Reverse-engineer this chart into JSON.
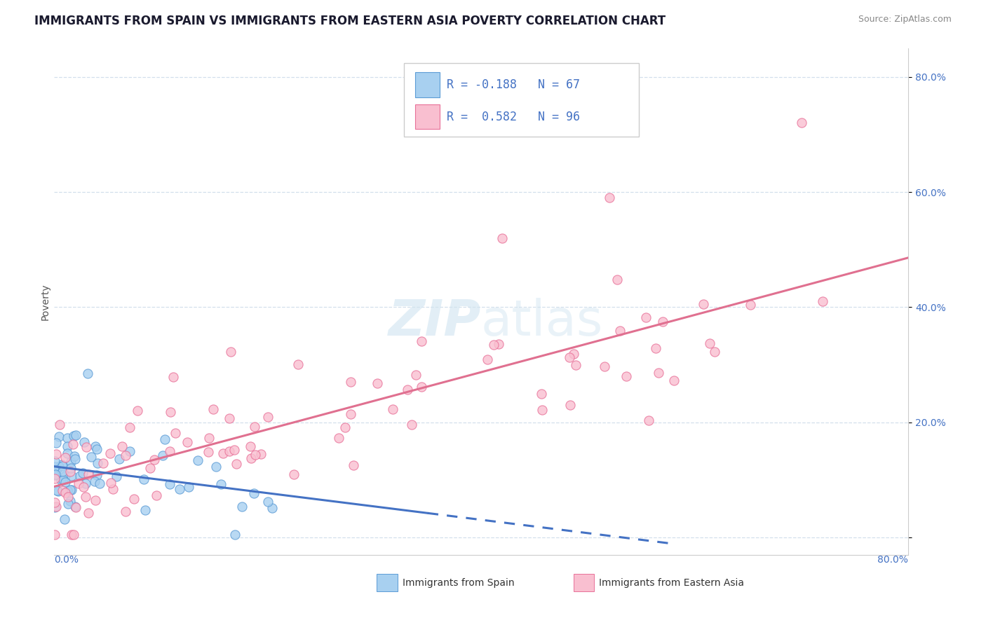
{
  "title": "IMMIGRANTS FROM SPAIN VS IMMIGRANTS FROM EASTERN ASIA POVERTY CORRELATION CHART",
  "source": "Source: ZipAtlas.com",
  "ylabel": "Poverty",
  "xmin": 0.0,
  "xmax": 0.8,
  "ymin": 0.0,
  "ymax": 0.85,
  "color_spain": "#a8d0f0",
  "color_spain_edge": "#5b9bd5",
  "color_ea": "#f9bfd0",
  "color_ea_edge": "#e87098",
  "color_trendline_spain": "#4472c4",
  "color_trendline_ea": "#e07090",
  "color_grid": "#c8d8e8",
  "color_tick": "#4472c4",
  "watermark_color": "#d0e4f0",
  "title_color": "#1a1a2e",
  "source_color": "#888888",
  "title_fontsize": 12,
  "tick_fontsize": 10,
  "legend_fontsize": 12
}
